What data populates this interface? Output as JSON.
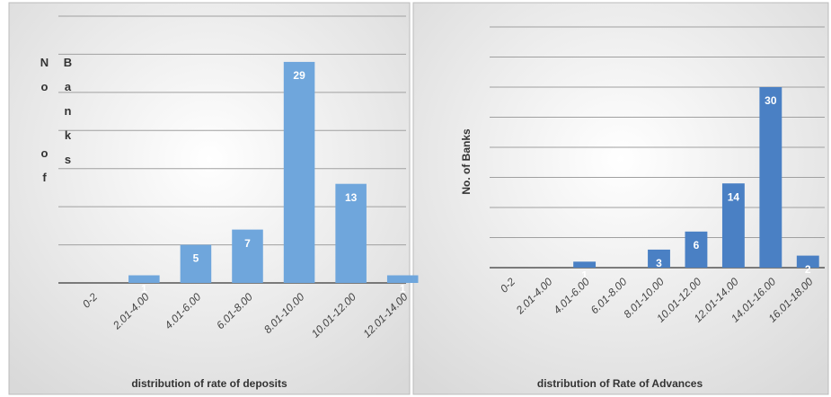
{
  "chart_data": [
    {
      "type": "bar",
      "x_label": "distribution of rate of deposits",
      "y_label": "No of Banks",
      "categories": [
        "0-2",
        "2.01-4.00",
        "4.01-6.00",
        "6.01-8.00",
        "8.01-10.00",
        "10.01-12.00",
        "12.01-14.00"
      ],
      "values": [
        0,
        1,
        5,
        7,
        29,
        13,
        1
      ],
      "color": "#6fa6dc",
      "ylim": [
        0,
        35
      ],
      "yticks": [
        0,
        5,
        10,
        15,
        20,
        25,
        30,
        35
      ],
      "grid": true
    },
    {
      "type": "bar",
      "x_label": "distribution of Rate of Advances",
      "y_label": "No. of Banks",
      "categories": [
        "0-2",
        "2.01-4.00",
        "4.01-6.00",
        "6.01-8.00",
        "8.01-10.00",
        "10.01-12.00",
        "12.01-14.00",
        "14.01-16.00",
        "16.01-18.00"
      ],
      "values": [
        0,
        0,
        1,
        0,
        3,
        6,
        14,
        30,
        2
      ],
      "color": "#4a80c4",
      "ylim": [
        0,
        40
      ],
      "yticks": [
        0,
        5,
        10,
        15,
        20,
        25,
        30,
        35,
        40
      ],
      "grid": true
    }
  ]
}
